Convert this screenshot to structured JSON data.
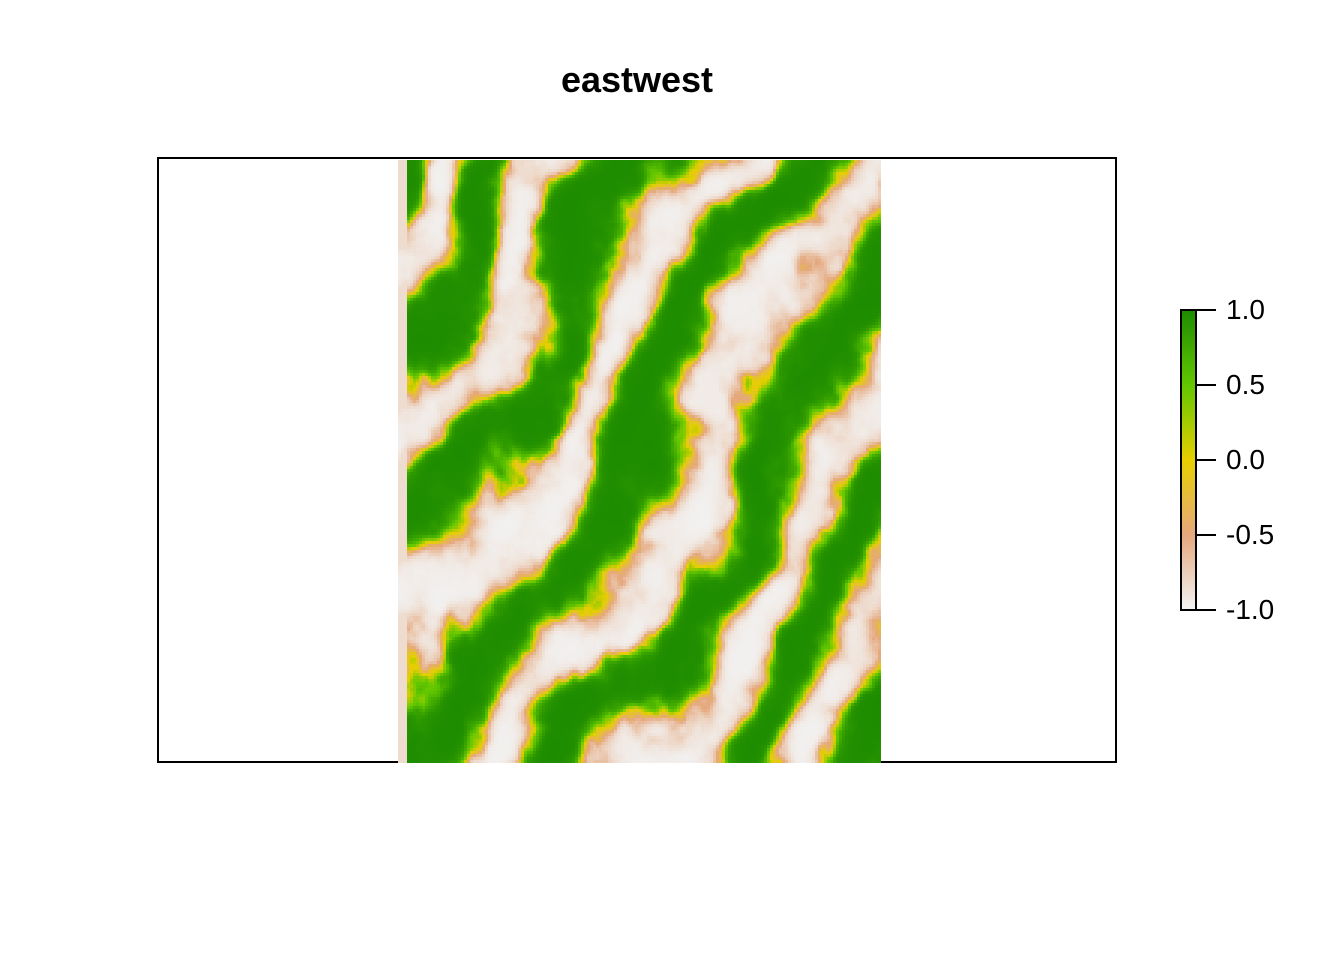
{
  "chart_data": {
    "type": "heatmap",
    "title": "eastwest",
    "xlabel": "",
    "ylabel": "",
    "axes_visible": false,
    "box_frame": true,
    "value_range": [
      -1.0,
      1.0
    ],
    "colorscale": [
      {
        "value": -1.0,
        "color": "#f2f2f2"
      },
      {
        "value": -0.5,
        "color": "#e5a87d"
      },
      {
        "value": 0.0,
        "color": "#e6cf00"
      },
      {
        "value": 0.5,
        "color": "#63c700"
      },
      {
        "value": 1.0,
        "color": "#1e8c00"
      }
    ],
    "legend": {
      "placement": "right",
      "ticks": [
        {
          "value": 1.0,
          "label": "1.0"
        },
        {
          "value": 0.5,
          "label": "0.5"
        },
        {
          "value": 0.0,
          "label": "0.0"
        },
        {
          "value": -0.5,
          "label": "-0.5"
        },
        {
          "value": -1.0,
          "label": "-1.0"
        }
      ]
    }
  }
}
